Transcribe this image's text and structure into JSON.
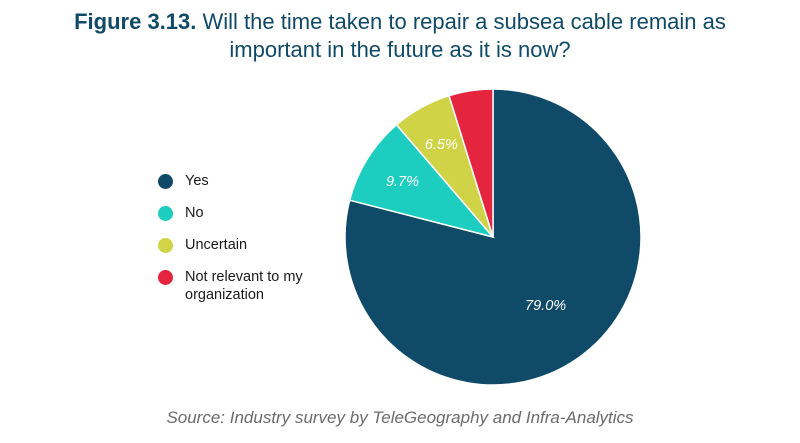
{
  "title": {
    "figure": "Figure 3.13.",
    "line1": "Will the time taken to repair a subsea cable remain as",
    "line2": "important in the future as it is now?"
  },
  "source": "Source: Industry survey by TeleGeography and Infra-Analytics",
  "chart_data": {
    "type": "pie",
    "title": "Figure 3.13. Will the time taken to repair a subsea cable remain as important in the future as it is now?",
    "categories": [
      "Yes",
      "No",
      "Uncertain",
      "Not relevant to my organization"
    ],
    "values": [
      79.0,
      9.7,
      6.5,
      4.8
    ],
    "labels": [
      "79.0%",
      "9.7%",
      "6.5%",
      ""
    ],
    "colors": [
      "#0f4a68",
      "#1ccdc0",
      "#cfd345",
      "#e5243f"
    ],
    "label_colors": [
      "#ffffff",
      "#ffffff",
      "#ffffff",
      "#ffffff"
    ],
    "legend_position": "left",
    "start_angle_deg": 0,
    "direction": "clockwise"
  }
}
